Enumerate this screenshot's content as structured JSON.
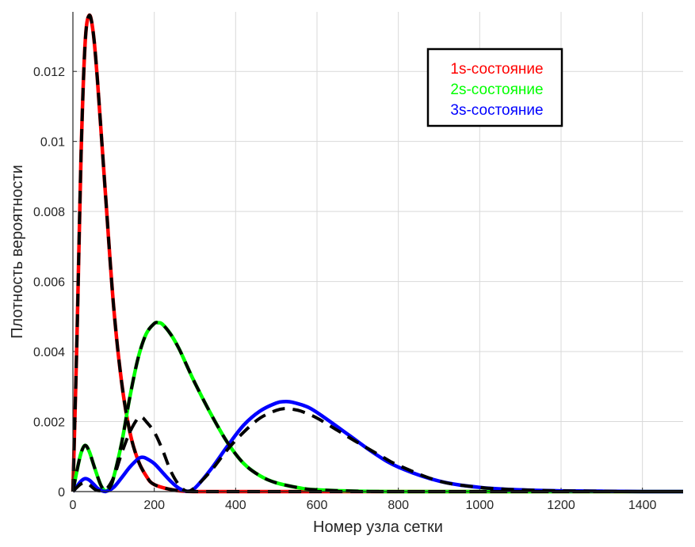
{
  "chart_data": {
    "type": "line",
    "xlabel": "Номер узла сетки",
    "ylabel": "Плотность вероятности",
    "xlim": [
      0,
      1500
    ],
    "ylim": [
      0,
      0.0137
    ],
    "xticks": [
      0,
      200,
      400,
      600,
      800,
      1000,
      1200,
      1400
    ],
    "xtick_labels": [
      "0",
      "200",
      "400",
      "600",
      "800",
      "1000",
      "1200",
      "1400"
    ],
    "yticks": [
      0,
      0.002,
      0.004,
      0.006,
      0.008,
      0.01,
      0.012
    ],
    "ytick_labels": [
      "0",
      "0.002",
      "0.004",
      "0.006",
      "0.008",
      "0.01",
      "0.012"
    ],
    "grid": true,
    "legend_position": "top-right",
    "legend": [
      {
        "label": "1s-состояние",
        "color": "#ff0000"
      },
      {
        "label": "2s-состояние",
        "color": "#00ff00"
      },
      {
        "label": "3s-состояние",
        "color": "#0000ff"
      }
    ],
    "series": [
      {
        "name": "1s-состояние",
        "color": "#ff0000",
        "style": "solid",
        "x": [
          0,
          10,
          20,
          30,
          40,
          50,
          60,
          80,
          100,
          120,
          140,
          160,
          180,
          200,
          250,
          300,
          400,
          600,
          1500
        ],
        "y": [
          0,
          0.0044,
          0.0096,
          0.0128,
          0.0136,
          0.0131,
          0.0118,
          0.0085,
          0.0053,
          0.0031,
          0.0017,
          0.0009,
          0.00045,
          0.0002,
          4e-05,
          0,
          0,
          0,
          0
        ]
      },
      {
        "name": "2s-состояние",
        "color": "#00ff00",
        "style": "solid",
        "x": [
          0,
          10,
          20,
          30,
          40,
          50,
          60,
          70,
          80,
          90,
          100,
          120,
          140,
          160,
          180,
          200,
          210,
          220,
          240,
          260,
          280,
          300,
          340,
          380,
          420,
          460,
          500,
          560,
          600,
          700,
          800,
          1000,
          1500
        ],
        "y": [
          0,
          0.0006,
          0.0011,
          0.00132,
          0.00115,
          0.0008,
          0.00045,
          0.00015,
          2e-05,
          0.0001,
          0.0004,
          0.0014,
          0.0027,
          0.0038,
          0.0045,
          0.0048,
          0.00482,
          0.00478,
          0.0045,
          0.0041,
          0.0036,
          0.0031,
          0.0022,
          0.0014,
          0.0008,
          0.00045,
          0.00025,
          0.0001,
          5e-05,
          1e-05,
          0,
          0,
          0
        ]
      },
      {
        "name": "3s-состояние",
        "color": "#0000ff",
        "style": "solid",
        "x": [
          0,
          10,
          20,
          30,
          40,
          50,
          60,
          70,
          80,
          100,
          120,
          140,
          160,
          170,
          180,
          200,
          220,
          240,
          260,
          280,
          300,
          340,
          380,
          420,
          460,
          500,
          520,
          540,
          580,
          620,
          680,
          740,
          800,
          900,
          1000,
          1100,
          1200,
          1300,
          1400,
          1500
        ],
        "y": [
          0,
          0.00015,
          0.0003,
          0.00037,
          0.00033,
          0.00022,
          0.0001,
          3e-05,
          0,
          0.00012,
          0.0004,
          0.0007,
          0.00093,
          0.00098,
          0.00095,
          0.0008,
          0.00055,
          0.0003,
          0.0001,
          1e-05,
          0.0001,
          0.00065,
          0.0013,
          0.0019,
          0.0023,
          0.00253,
          0.00257,
          0.00255,
          0.0024,
          0.0021,
          0.0016,
          0.0011,
          0.0007,
          0.0003,
          0.00012,
          5e-05,
          2e-05,
          1e-05,
          0,
          0
        ]
      },
      {
        "name": "",
        "color": "#000000",
        "style": "dashed",
        "x": [
          0,
          10,
          20,
          30,
          40,
          50,
          60,
          80,
          100,
          120,
          140,
          160,
          180,
          200,
          250,
          300,
          400,
          600,
          1500
        ],
        "y": [
          0,
          0.0044,
          0.0096,
          0.0128,
          0.0136,
          0.0131,
          0.0118,
          0.0085,
          0.0053,
          0.0031,
          0.0017,
          0.0009,
          0.00045,
          0.0002,
          4e-05,
          0,
          0,
          0,
          0
        ]
      },
      {
        "name": "",
        "color": "#000000",
        "style": "dashed",
        "x": [
          0,
          10,
          20,
          30,
          40,
          50,
          60,
          70,
          80,
          90,
          100,
          120,
          140,
          160,
          180,
          200,
          210,
          220,
          240,
          260,
          280,
          300,
          340,
          380,
          420,
          460,
          500,
          560,
          600,
          700,
          800,
          1000,
          1500
        ],
        "y": [
          0,
          0.0006,
          0.0011,
          0.00132,
          0.00115,
          0.0008,
          0.00045,
          0.00015,
          2e-05,
          0.0001,
          0.0004,
          0.0014,
          0.0027,
          0.0038,
          0.0045,
          0.0048,
          0.00482,
          0.00478,
          0.0045,
          0.0041,
          0.0036,
          0.0031,
          0.0022,
          0.0014,
          0.0008,
          0.00045,
          0.00025,
          0.0001,
          5e-05,
          1e-05,
          0,
          0,
          0
        ]
      },
      {
        "name": "",
        "color": "#000000",
        "style": "dashed",
        "x": [
          0,
          10,
          20,
          30,
          40,
          50,
          60,
          80,
          100,
          120,
          140,
          160,
          170,
          180,
          200,
          220,
          240,
          260,
          280,
          300,
          340,
          380,
          420,
          460,
          500,
          520,
          540,
          560,
          600,
          650,
          700,
          760,
          800,
          900,
          1000,
          1100,
          1200,
          1300,
          1400,
          1500
        ],
        "y": [
          0,
          0.00012,
          0.00022,
          0.00025,
          0.0002,
          0.0001,
          3e-05,
          5e-05,
          0.0004,
          0.0011,
          0.0017,
          0.0021,
          0.00212,
          0.002,
          0.0017,
          0.0012,
          0.0006,
          0.0002,
          1e-05,
          0.00012,
          0.0006,
          0.0012,
          0.0017,
          0.0021,
          0.00232,
          0.00237,
          0.00235,
          0.0023,
          0.0021,
          0.00175,
          0.0014,
          0.001,
          0.00075,
          0.0003,
          0.00012,
          5e-05,
          2e-05,
          1e-05,
          0,
          0
        ]
      }
    ]
  }
}
